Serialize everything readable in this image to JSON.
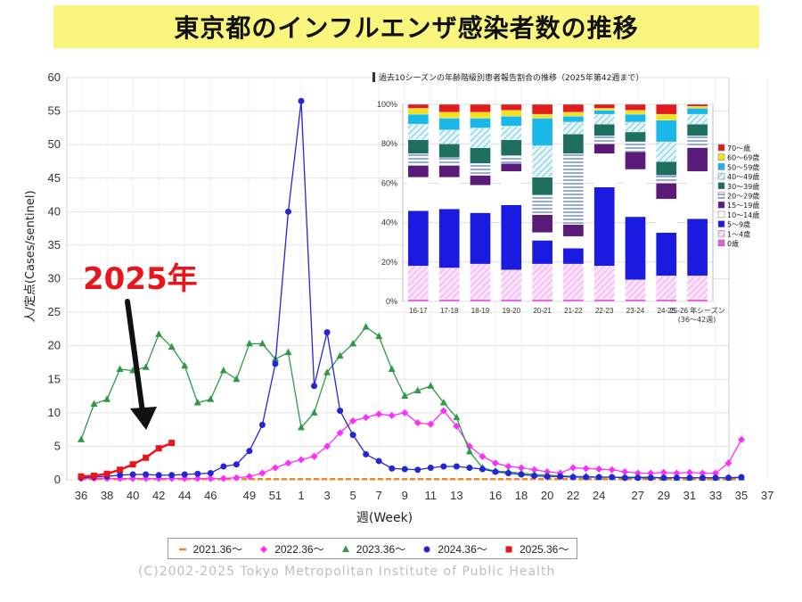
{
  "title": "東京都のインフルエンザ感染者数の推移",
  "callout": "2025年",
  "copyright": "(C)2002-2025 Tokyo Metropolitan Institute of Public Health",
  "chart_data": [
    {
      "type": "line",
      "xlabel": "週(Week)",
      "ylabel": "人/定点(Cases/sentinel)",
      "ylim": [
        0,
        60
      ],
      "yticks": [
        0,
        5,
        10,
        15,
        20,
        25,
        30,
        35,
        40,
        45,
        50,
        55,
        60
      ],
      "xtick_labels": [
        "36",
        "38",
        "40",
        "42",
        "44",
        "46",
        "49",
        "51",
        "1",
        "3",
        "5",
        "7",
        "9",
        "11",
        "13",
        "16",
        "18",
        "20",
        "22",
        "24",
        "27",
        "29",
        "31",
        "33",
        "35",
        "37"
      ],
      "grid": true,
      "legend_position": "bottom",
      "series": [
        {
          "name": "2021.36～",
          "color": "#f0872a",
          "marker": "dash",
          "values": [
            0.1,
            0.1,
            0.1,
            0.1,
            0.1,
            0.1,
            0.1,
            0.1,
            0.1,
            0.1,
            0.1,
            0.1,
            0.1,
            0.1,
            0.1,
            0.1,
            0.1,
            0.1,
            0.1,
            0.1,
            0.1,
            0.1,
            0.1,
            0.1,
            0.1,
            0.1,
            0.1,
            0.1,
            0.1,
            0.1,
            0.1,
            0.1,
            0.1,
            0.1,
            0.1,
            0.1,
            0.1,
            0.1,
            0.1,
            0.1,
            0.1,
            0.1,
            0.1,
            0.1,
            0.1,
            0.1,
            0.1,
            0.1,
            0.1,
            0.1,
            0.1,
            0.1
          ]
        },
        {
          "name": "2022.36～",
          "color": "#ff2cff",
          "marker": "diamond",
          "values": [
            0.2,
            0.2,
            0.2,
            0.2,
            0.2,
            0.2,
            0.2,
            0.2,
            0.2,
            0.2,
            0.2,
            0.2,
            0.3,
            0.5,
            1.0,
            1.8,
            2.5,
            3.0,
            3.5,
            5.0,
            7.0,
            8.8,
            9.3,
            9.8,
            9.6,
            10.0,
            8.5,
            8.3,
            10.3,
            8.0,
            5.0,
            3.5,
            2.5,
            2.0,
            1.8,
            1.5,
            1.2,
            1.0,
            1.8,
            1.7,
            1.6,
            1.5,
            1.2,
            1.0,
            1.0,
            1.1,
            1.0,
            1.1,
            1.0,
            1.0,
            2.5,
            6.0
          ]
        },
        {
          "name": "2023.36～",
          "color": "#2e9a47",
          "marker": "triangle",
          "values": [
            6.0,
            11.3,
            12.0,
            16.5,
            16.3,
            16.8,
            21.7,
            19.8,
            17.0,
            11.5,
            12.0,
            16.3,
            15.0,
            20.3,
            20.3,
            18.0,
            19.0,
            7.8,
            10.0,
            16.0,
            18.5,
            20.3,
            22.8,
            21.4,
            16.5,
            12.5,
            13.3,
            14.0,
            11.5,
            9.3,
            4.2,
            1.8,
            1.3,
            1.2,
            1.0,
            0.8,
            0.7,
            0.6,
            0.5,
            0.5,
            0.4,
            0.4,
            0.4,
            0.4,
            0.4,
            0.3,
            0.3,
            0.3,
            0.3,
            0.3,
            0.3,
            0.3
          ]
        },
        {
          "name": "2024.36～",
          "color": "#2525d8",
          "marker": "circle",
          "values": [
            0.3,
            0.4,
            0.5,
            0.7,
            0.8,
            0.8,
            0.7,
            0.7,
            0.8,
            0.9,
            1.0,
            2.0,
            2.3,
            4.3,
            8.2,
            17.3,
            40.0,
            56.5,
            14.0,
            22.0,
            10.3,
            6.7,
            3.8,
            2.8,
            1.7,
            1.6,
            1.5,
            1.8,
            2.0,
            2.0,
            1.8,
            1.6,
            1.2,
            1.0,
            0.8,
            0.6,
            0.5,
            0.5,
            0.4,
            0.4,
            0.4,
            0.4,
            0.3,
            0.3,
            0.3,
            0.3,
            0.3,
            0.3,
            0.3,
            0.3,
            0.3,
            0.4
          ]
        },
        {
          "name": "2025.36～",
          "color": "#e8151b",
          "marker": "square",
          "values": [
            0.5,
            0.6,
            0.9,
            1.5,
            2.3,
            3.3,
            4.7,
            5.5
          ]
        }
      ]
    },
    {
      "type": "bar",
      "stacked": true,
      "title": "過去10シーズンの年齢階級別患者報告割合の推移（2025年第42週まで）",
      "ylim": [
        0,
        100
      ],
      "ytick_labels": [
        "0%",
        "20%",
        "40%",
        "60%",
        "80%",
        "100%"
      ],
      "categories": [
        "16-17",
        "17-18",
        "18-19",
        "19-20",
        "20-21",
        "21-22",
        "22-23",
        "23-24",
        "24-25",
        "25-26 年シーズン"
      ],
      "category_note": "(36～42週)",
      "legend_position": "right",
      "series": [
        {
          "name": "0歳",
          "color": "#e35ee3",
          "values": [
            1,
            1,
            1,
            1,
            1,
            1,
            1,
            1,
            1,
            1
          ]
        },
        {
          "name": "1～4歳",
          "color": "#f6c8f4",
          "values": [
            17,
            16,
            18,
            15,
            18,
            18,
            17,
            10,
            12,
            12
          ]
        },
        {
          "name": "5～9歳",
          "color": "#1a1ae0",
          "values": [
            28,
            30,
            26,
            33,
            12,
            8,
            40,
            32,
            22,
            29
          ]
        },
        {
          "name": "10～14歳",
          "color": "#ffffff",
          "values": [
            17,
            16,
            14,
            17,
            4,
            6,
            17,
            24,
            17,
            24
          ]
        },
        {
          "name": "15～19歳",
          "color": "#5a1a7a",
          "values": [
            6,
            6,
            5,
            4,
            9,
            6,
            5,
            9,
            8,
            12
          ]
        },
        {
          "name": "20～29歳",
          "color": "#8ea6e0",
          "values": [
            6,
            4,
            6,
            4,
            10,
            36,
            4,
            5,
            4,
            6
          ]
        },
        {
          "name": "30～39歳",
          "color": "#1f6f5f",
          "values": [
            7,
            7,
            8,
            8,
            9,
            10,
            6,
            5,
            7,
            6
          ]
        },
        {
          "name": "40～49歳",
          "color": "#a8e0e8",
          "values": [
            8,
            7,
            10,
            7,
            16,
            6,
            5,
            5,
            10,
            5
          ]
        },
        {
          "name": "50～59歳",
          "color": "#1ab8e8",
          "values": [
            5,
            6,
            5,
            5,
            14,
            3,
            2,
            4,
            11,
            3
          ]
        },
        {
          "name": "60～69歳",
          "color": "#f6e11e",
          "values": [
            3,
            3,
            3,
            3,
            2,
            2,
            1,
            2,
            3,
            1
          ]
        },
        {
          "name": "70～歳",
          "color": "#e21c1c",
          "values": [
            2,
            4,
            4,
            3,
            5,
            4,
            2,
            3,
            5,
            1
          ]
        }
      ]
    }
  ]
}
